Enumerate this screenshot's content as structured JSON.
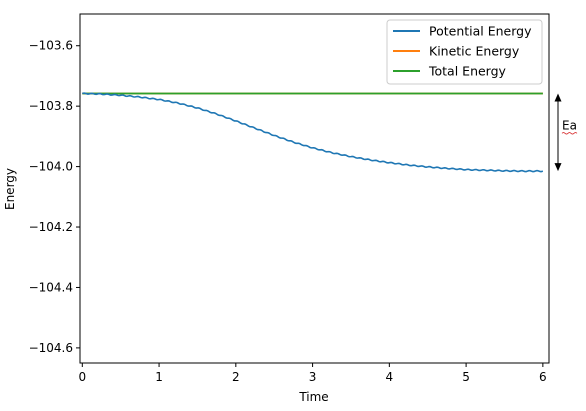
{
  "chart_data": {
    "type": "line",
    "xlabel": "Time",
    "ylabel": "Energy",
    "xlim": [
      -0.03,
      6.08
    ],
    "ylim": [
      -104.65,
      -103.495
    ],
    "xticks": [
      0,
      1,
      2,
      3,
      4,
      5,
      6
    ],
    "yticks": [
      -103.6,
      -103.8,
      -104.0,
      -104.2,
      -104.4,
      -104.6
    ],
    "xtick_labels": [
      "0",
      "1",
      "2",
      "3",
      "4",
      "5",
      "6"
    ],
    "ytick_labels": [
      "−103.6",
      "−103.8",
      "−104.0",
      "−104.2",
      "−104.4",
      "−104.6"
    ],
    "grid": false,
    "legend_position": "top-right",
    "series": [
      {
        "name": "Potential Energy",
        "color": "#1f77b4",
        "x": [
          0,
          0.25,
          0.5,
          0.75,
          1.0,
          1.25,
          1.5,
          1.75,
          2.0,
          2.25,
          2.5,
          2.75,
          3.0,
          3.25,
          3.5,
          3.75,
          4.0,
          4.25,
          4.5,
          4.75,
          5.0,
          5.25,
          5.5,
          5.75,
          6.0
        ],
        "y": [
          -103.758,
          -103.76,
          -103.764,
          -103.77,
          -103.778,
          -103.79,
          -103.806,
          -103.826,
          -103.849,
          -103.873,
          -103.897,
          -103.919,
          -103.938,
          -103.954,
          -103.967,
          -103.978,
          -103.987,
          -103.995,
          -104.001,
          -104.006,
          -104.01,
          -104.012,
          -104.014,
          -104.015,
          -104.015
        ]
      },
      {
        "name": "Kinetic Energy",
        "color": "#ff7f0e",
        "x": [
          0,
          6
        ],
        "y": [
          -103.758,
          -103.758
        ]
      },
      {
        "name": "Total Energy",
        "color": "#2ca02c",
        "x": [
          0,
          6
        ],
        "y": [
          -103.758,
          -103.758
        ]
      }
    ],
    "annotation": {
      "label": "Ea",
      "y_top": -103.758,
      "y_bottom": -104.015
    }
  }
}
